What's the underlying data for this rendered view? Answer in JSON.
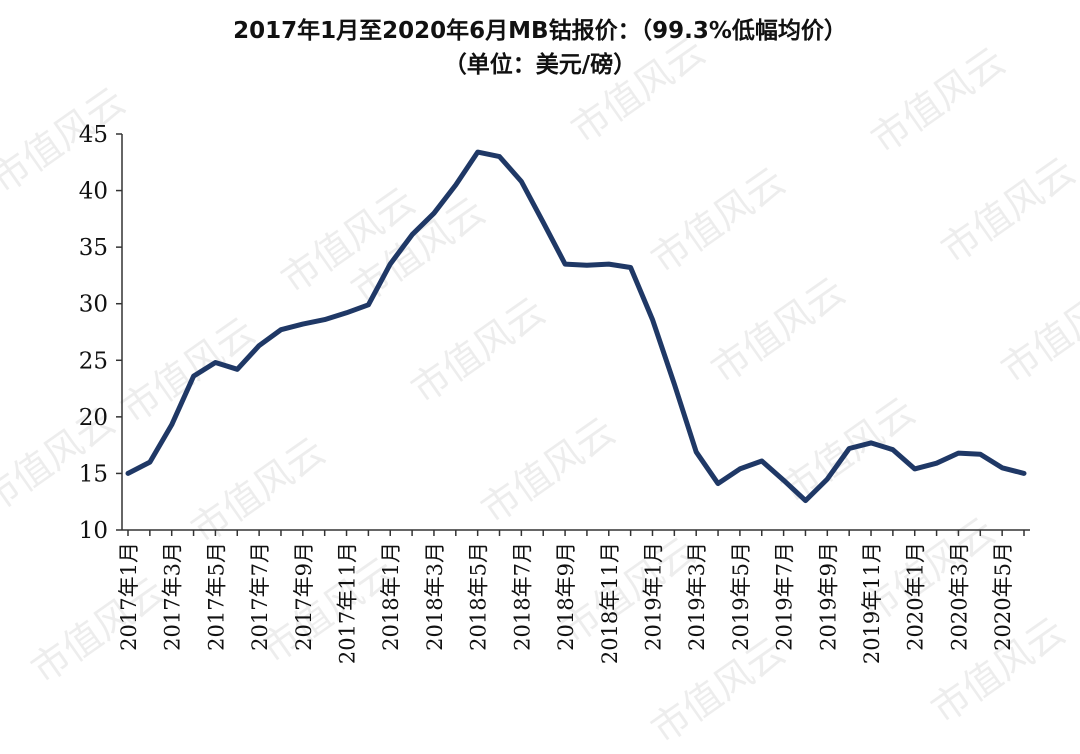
{
  "chart_data": {
    "type": "line",
    "title": "2017年1月至2020年6月MB钴报价：（99.3%低幅均价）",
    "subtitle": "（单位：美元/磅）",
    "xlabel": "",
    "ylabel": "",
    "ylim": [
      10,
      45
    ],
    "yticks": [
      10,
      15,
      20,
      25,
      30,
      35,
      40,
      45
    ],
    "grid": false,
    "legend": "none",
    "x": [
      "2017年1月",
      "2017年2月",
      "2017年3月",
      "2017年4月",
      "2017年5月",
      "2017年6月",
      "2017年7月",
      "2017年8月",
      "2017年9月",
      "2017年10月",
      "2017年11月",
      "2017年12月",
      "2018年1月",
      "2018年2月",
      "2018年3月",
      "2018年4月",
      "2018年5月",
      "2018年6月",
      "2018年7月",
      "2018年8月",
      "2018年9月",
      "2018年10月",
      "2018年11月",
      "2018年12月",
      "2019年1月",
      "2019年2月",
      "2019年3月",
      "2019年4月",
      "2019年5月",
      "2019年6月",
      "2019年7月",
      "2019年8月",
      "2019年9月",
      "2019年10月",
      "2019年11月",
      "2019年12月",
      "2020年1月",
      "2020年2月",
      "2020年3月",
      "2020年4月",
      "2020年5月",
      "2020年6月"
    ],
    "xtick_labels": [
      "2017年1月",
      "2017年3月",
      "2017年5月",
      "2017年7月",
      "2017年9月",
      "2017年11月",
      "2018年1月",
      "2018年3月",
      "2018年5月",
      "2018年7月",
      "2018年9月",
      "2018年11月",
      "2019年1月",
      "2019年3月",
      "2019年5月",
      "2019年7月",
      "2019年9月",
      "2019年11月",
      "2020年1月",
      "2020年3月",
      "2020年5月"
    ],
    "series": [
      {
        "values": [
          15.0,
          16.0,
          19.3,
          23.6,
          24.8,
          24.2,
          26.3,
          27.7,
          28.2,
          28.6,
          29.2,
          29.9,
          33.5,
          36.1,
          38.0,
          40.5,
          43.4,
          43.0,
          40.8,
          37.2,
          33.5,
          33.4,
          33.5,
          33.2,
          28.6,
          22.9,
          16.9,
          14.1,
          15.4,
          16.1,
          14.4,
          12.6,
          14.5,
          17.2,
          17.7,
          17.1,
          15.4,
          15.9,
          16.8,
          16.7,
          15.5,
          15.0
        ],
        "color": "#1f3866"
      }
    ],
    "watermark": "市值风云"
  }
}
